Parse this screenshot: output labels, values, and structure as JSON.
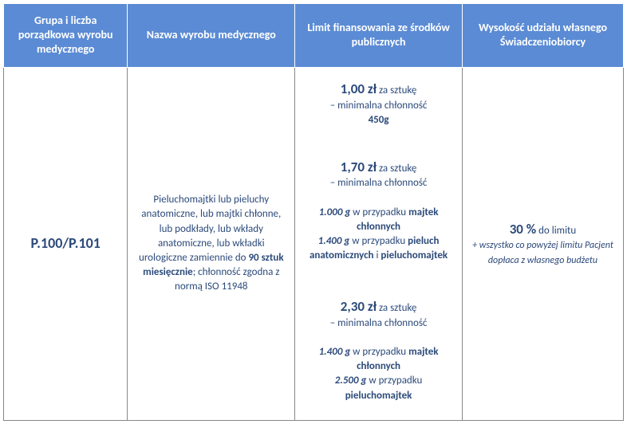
{
  "headers": {
    "col1": "Grupa i liczba porządkowa wyrobu medycznego",
    "col2": "Nazwa wyrobu medycznego",
    "col3": "Limit finansowania ze środków publicznych",
    "col4": "Wysokość udziału własnego Świadczeniobiorcy"
  },
  "row": {
    "code": "P.100/P.101",
    "name_part1": "Pieluchomajtki lub pieluchy anatomiczne, lub majtki chłonne, lub podkłady, lub wkłady anatomiczne, lub wkładki urologiczne zamiennie do ",
    "name_bold": "90 sztuk miesięcznie",
    "name_part2": "; chłonność zgodna z normą ISO 11948",
    "limits": [
      {
        "price": "1,00 zł",
        "unit": " za sztukę",
        "desc": "– minimalna chłonność",
        "g1": "450g"
      },
      {
        "price": "1,70 zł",
        "unit": " za sztukę",
        "desc": "– minimalna chłonność",
        "g1": "1.000 g",
        "t1a": " w przypadku ",
        "t1b": "majtek chłonnych",
        "g2": "1.400 g",
        "t2a": " w przypadku ",
        "t2b": "pieluch anatomicznych",
        "t2c": " i ",
        "t2d": "pieluchomajtek"
      },
      {
        "price": "2,30 zł",
        "unit": " za sztukę",
        "desc": "– minimalna chłonność",
        "g1": "1.400 g",
        "t1a": " w przypadku ",
        "t1b": "majtek chłonnych",
        "g2": "2.500 g",
        "t2a": " w przypadku ",
        "t2b": "pieluchomajtek"
      }
    ],
    "share": {
      "pct": "30 %",
      "pct_suffix": " do limitu",
      "note": "+ wszystko co powyżej limitu Pacjent dopłaca z własnego budżetu"
    }
  },
  "colors": {
    "header_bg": "#5b8bd4",
    "header_text": "#ffffff",
    "cell_text": "#2c4a7a",
    "border": "#888888"
  }
}
